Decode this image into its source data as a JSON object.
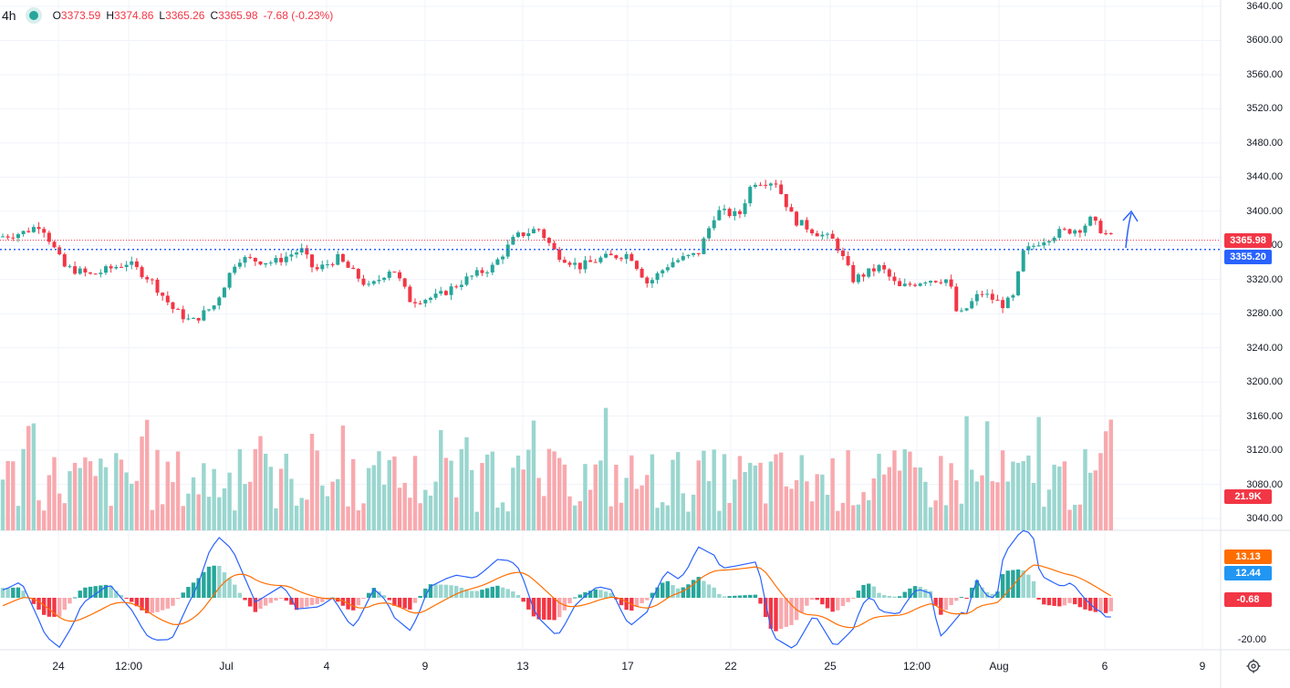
{
  "legend": {
    "timeframe": "4h",
    "open_label": "O",
    "open": "3373.59",
    "high_label": "H",
    "high": "3374.86",
    "low_label": "L",
    "low": "3365.26",
    "close_label": "C",
    "close": "3365.98",
    "change": "-7.68 (-0.23%)"
  },
  "price_axis": {
    "ticks": [
      "3640.00",
      "3600.00",
      "3560.00",
      "3520.00",
      "3480.00",
      "3440.00",
      "3400.00",
      "3360.00",
      "3320.00",
      "3280.00",
      "3240.00",
      "3200.00",
      "3160.00",
      "3120.00",
      "3080.00",
      "3040.00"
    ],
    "ticks_values": [
      3640,
      3600,
      3560,
      3520,
      3480,
      3440,
      3400,
      3360,
      3320,
      3280,
      3240,
      3200,
      3160,
      3120,
      3080,
      3040
    ],
    "current_price_tag": "3365.98",
    "line_price_tag": "3355.20",
    "line_price_value": 3355.2,
    "volume_tag": "21.9K"
  },
  "macd_axis": {
    "macd_tag": "13.13",
    "signal_tag": "12.44",
    "hist_tag": "-0.68",
    "tick": "-20.00"
  },
  "time_axis": [
    "24",
    "12:00",
    "Jul",
    "4",
    "9",
    "13",
    "17",
    "22",
    "25",
    "12:00",
    "Aug",
    "6",
    "9"
  ],
  "colors": {
    "up": "#26a69a",
    "down": "#f23645",
    "vol_up": "#9ad6cf",
    "vol_down": "#f8a9ae",
    "macd_line": "#2962ff",
    "signal_line": "#ff6d00",
    "price_tag": "#f23645",
    "line_tag": "#2962ff"
  },
  "icons": {
    "settings": "gear-icon",
    "status": "market-open-dot-icon",
    "arrow": "up-arrow-drawing"
  },
  "chart_data": {
    "type": "candlestick",
    "symbol_timeframe": "4h",
    "y_range": [
      3240,
      3640
    ],
    "horizontal_line": 3355.2,
    "last_close": 3365.98,
    "candles_sample": [
      {
        "t": "24",
        "o": 3360,
        "c": 3375
      },
      {
        "t": "12:00",
        "o": 3335,
        "c": 3340
      },
      {
        "t": "~",
        "o": 3300,
        "c": 3275
      },
      {
        "t": "Jul",
        "o": 3345,
        "c": 3360
      },
      {
        "t": "4",
        "o": 3340,
        "c": 3330
      },
      {
        "t": "9",
        "o": 3300,
        "c": 3290
      },
      {
        "t": "13",
        "o": 3365,
        "c": 3375
      },
      {
        "t": "17",
        "o": 3340,
        "c": 3345
      },
      {
        "t": "22",
        "o": 3420,
        "c": 3435
      },
      {
        "t": "25",
        "o": 3370,
        "c": 3360
      },
      {
        "t": "12:00",
        "o": 3320,
        "c": 3325
      },
      {
        "t": "Aug",
        "o": 3295,
        "c": 3345
      },
      {
        "t": "6",
        "o": 3374,
        "c": 3366
      }
    ]
  }
}
